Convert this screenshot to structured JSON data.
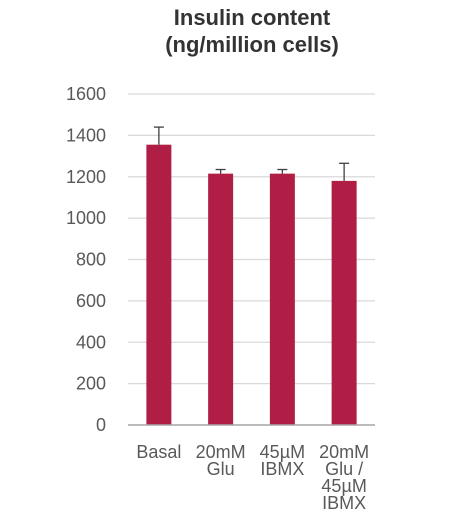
{
  "chart_data": {
    "type": "bar",
    "title": [
      "Insulin content",
      "(ng/million cells)"
    ],
    "categories": [
      [
        "Basal"
      ],
      [
        "20mM",
        "Glu"
      ],
      [
        "45µM",
        "IBMX"
      ],
      [
        "20mM",
        "Glu /",
        "45µM",
        "IBMX"
      ]
    ],
    "series": [
      {
        "values": [
          1355,
          1215,
          1215,
          1180
        ],
        "error": [
          85,
          20,
          20,
          85
        ],
        "color": "#B01E45"
      }
    ],
    "ylim": [
      0,
      1600
    ],
    "yticks": [
      0,
      200,
      400,
      600,
      800,
      1000,
      1200,
      1400,
      1600
    ],
    "grid": true,
    "colors": {
      "bar": "#B01E45",
      "grid": "#D9D9D9",
      "axis": "#A6A6A6",
      "text": "#595959",
      "title": "#333333"
    }
  }
}
